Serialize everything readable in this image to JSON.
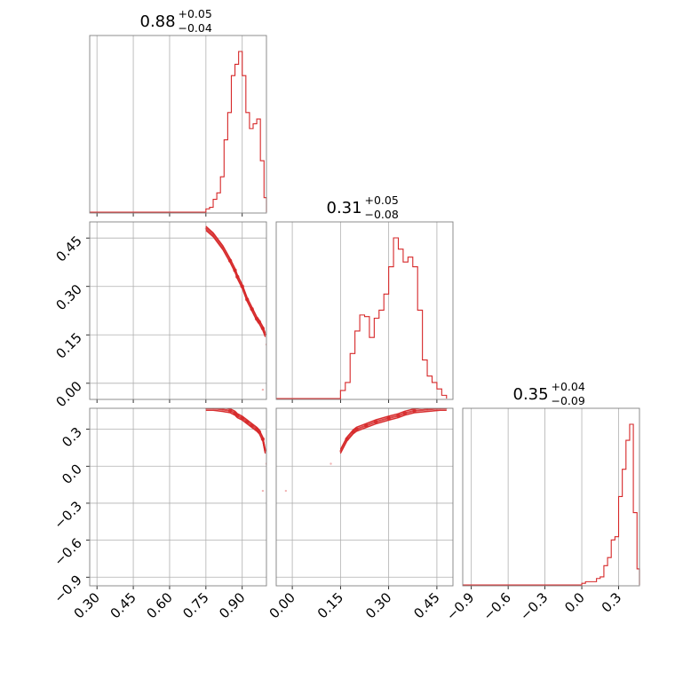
{
  "chart_data": {
    "type": "corner",
    "colors": {
      "line": "#d62728",
      "grid": "#b0b0b0",
      "frame": "#808080"
    },
    "grid": true,
    "parameters": [
      {
        "title": {
          "value": "0.88",
          "plus": "+0.05",
          "minus": "−0.04"
        },
        "range": [
          0.27,
          1.0
        ],
        "ticks": [
          0.3,
          0.45,
          0.6,
          0.75,
          0.9
        ],
        "tick_labels": [
          "0.30",
          "0.45",
          "0.60",
          "0.75",
          "0.90"
        ]
      },
      {
        "title": {
          "value": "0.31",
          "plus": "+0.05",
          "minus": "−0.08"
        },
        "range": [
          -0.05,
          0.5
        ],
        "ticks": [
          0.0,
          0.15,
          0.3,
          0.45
        ],
        "tick_labels": [
          "0.00",
          "0.15",
          "0.30",
          "0.45"
        ]
      },
      {
        "title": {
          "value": "0.35",
          "plus": "+0.04",
          "minus": "−0.09"
        },
        "range": [
          -0.97,
          0.47
        ],
        "ticks": [
          -0.9,
          -0.6,
          -0.3,
          0.0,
          0.3
        ],
        "tick_labels": [
          "−0.9",
          "−0.6",
          "−0.3",
          "0.0",
          "0.3"
        ]
      }
    ],
    "histograms": [
      {
        "parameter": 0,
        "bin_edges": [
          0.75,
          0.765,
          0.78,
          0.795,
          0.81,
          0.825,
          0.84,
          0.855,
          0.87,
          0.885,
          0.9,
          0.915,
          0.93,
          0.945,
          0.96,
          0.975,
          0.99,
          1.0
        ],
        "counts": [
          0.02,
          0.03,
          0.08,
          0.12,
          0.22,
          0.45,
          0.62,
          0.85,
          0.92,
          1.0,
          0.85,
          0.62,
          0.52,
          0.55,
          0.58,
          0.32,
          0.09
        ]
      },
      {
        "parameter": 1,
        "bin_edges": [
          0.15,
          0.165,
          0.18,
          0.195,
          0.21,
          0.225,
          0.24,
          0.255,
          0.27,
          0.285,
          0.3,
          0.315,
          0.33,
          0.345,
          0.36,
          0.375,
          0.39,
          0.405,
          0.42,
          0.435,
          0.45,
          0.465,
          0.48
        ],
        "counts": [
          0.05,
          0.1,
          0.28,
          0.42,
          0.52,
          0.51,
          0.38,
          0.5,
          0.55,
          0.65,
          0.82,
          1.0,
          0.93,
          0.85,
          0.88,
          0.82,
          0.55,
          0.24,
          0.14,
          0.1,
          0.06,
          0.02
        ]
      },
      {
        "parameter": 2,
        "bin_edges": [
          0.0,
          0.03,
          0.06,
          0.09,
          0.12,
          0.15,
          0.18,
          0.21,
          0.24,
          0.27,
          0.3,
          0.33,
          0.36,
          0.39,
          0.42,
          0.45,
          0.47
        ],
        "counts": [
          0.01,
          0.02,
          0.02,
          0.02,
          0.04,
          0.05,
          0.12,
          0.17,
          0.28,
          0.3,
          0.55,
          0.72,
          0.9,
          1.0,
          0.45,
          0.1
        ]
      }
    ],
    "scatter_samples": [
      {
        "a": 0.75,
        "b": 0.48,
        "c": 0.47
      },
      {
        "a": 0.78,
        "b": 0.46,
        "c": 0.47
      },
      {
        "a": 0.82,
        "b": 0.42,
        "c": 0.46
      },
      {
        "a": 0.85,
        "b": 0.38,
        "c": 0.45
      },
      {
        "a": 0.87,
        "b": 0.35,
        "c": 0.43
      },
      {
        "a": 0.88,
        "b": 0.33,
        "c": 0.41
      },
      {
        "a": 0.9,
        "b": 0.3,
        "c": 0.39
      },
      {
        "a": 0.92,
        "b": 0.26,
        "c": 0.36
      },
      {
        "a": 0.94,
        "b": 0.23,
        "c": 0.33
      },
      {
        "a": 0.96,
        "b": 0.2,
        "c": 0.3
      },
      {
        "a": 0.97,
        "b": 0.19,
        "c": 0.28
      },
      {
        "a": 0.985,
        "b": 0.17,
        "c": 0.22
      },
      {
        "a": 0.995,
        "b": 0.15,
        "c": 0.12
      },
      {
        "a": 1.0,
        "b": 0.12,
        "c": 0.02
      },
      {
        "a": 0.985,
        "b": -0.02,
        "c": -0.2
      }
    ]
  }
}
